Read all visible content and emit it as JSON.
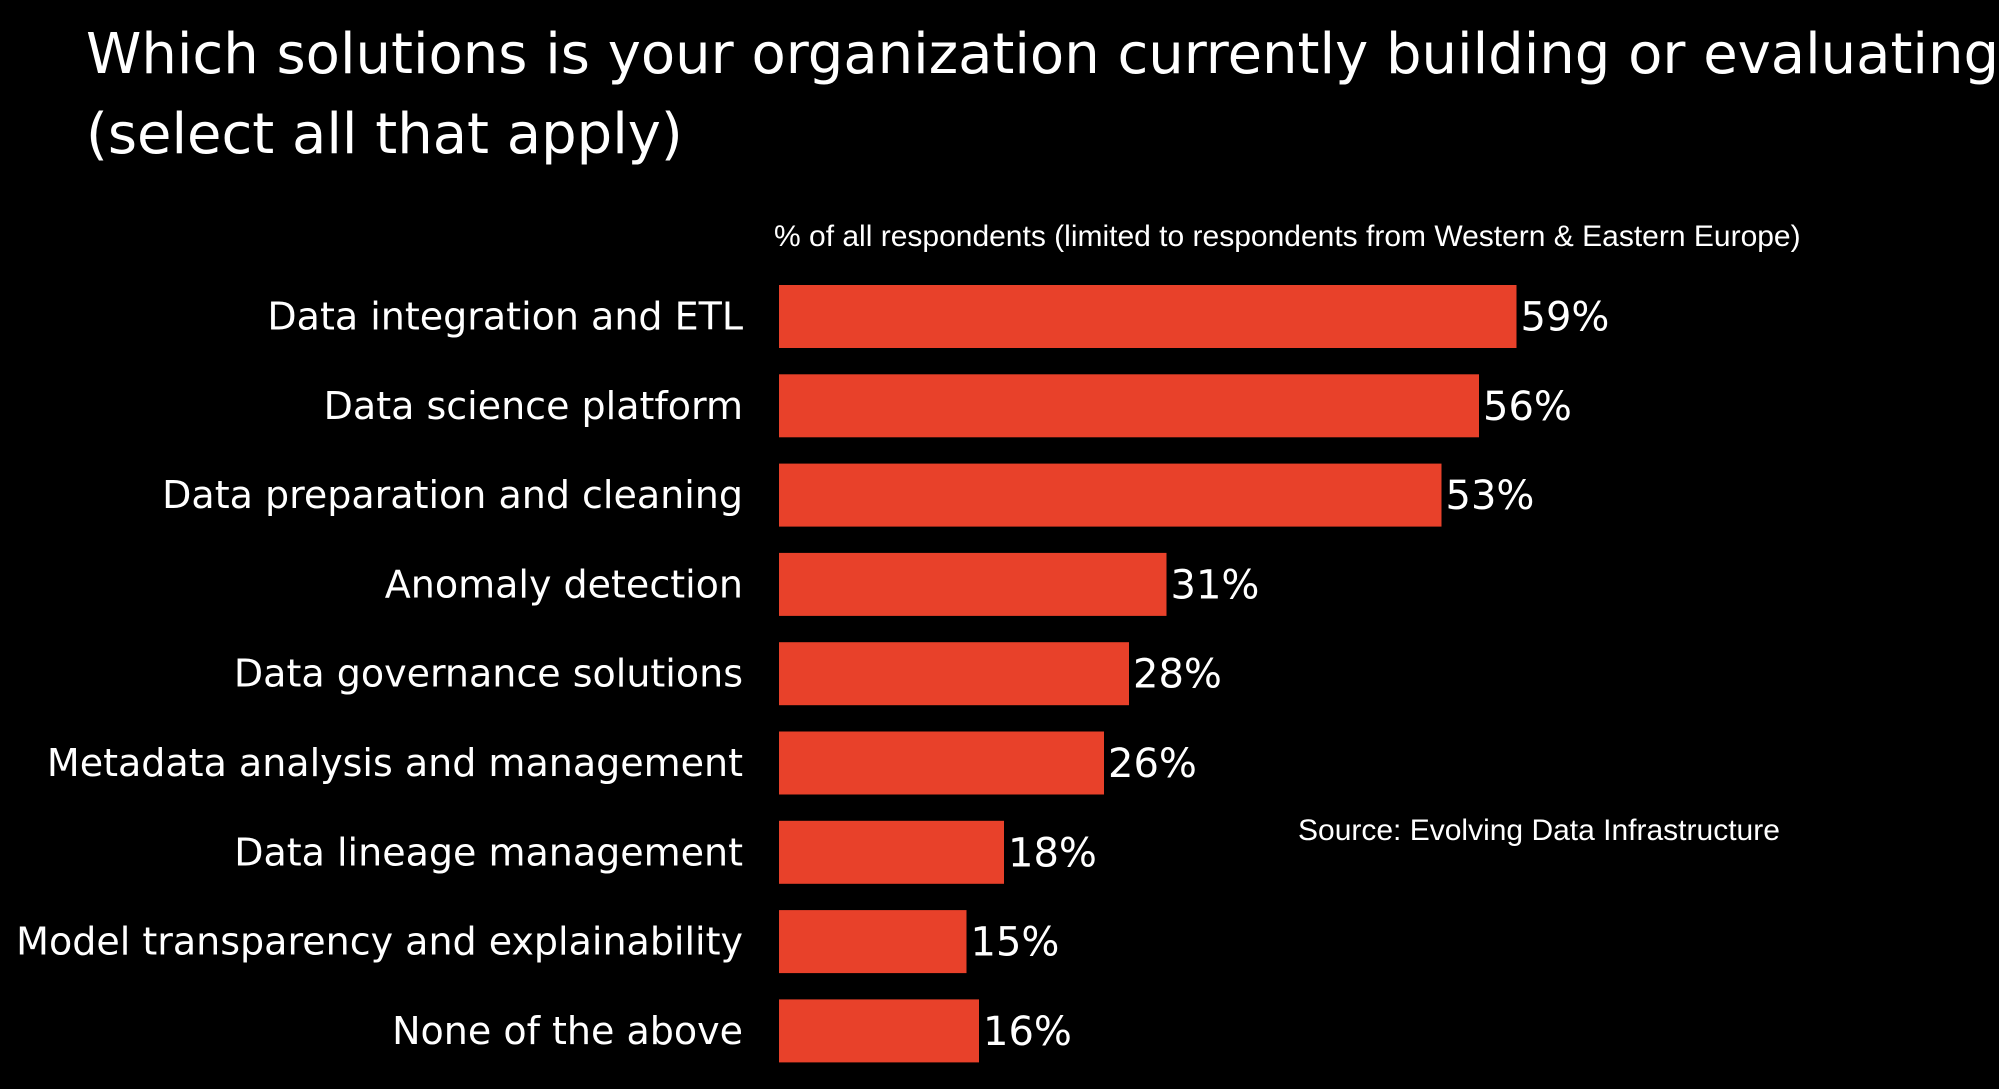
{
  "chart_data": {
    "type": "bar",
    "orientation": "horizontal",
    "title_lines": [
      "Which solutions is your organization currently building or evaluating?",
      "(select all that apply)"
    ],
    "subtitle": "% of all respondents (limited to respondents from Western & Eastern Europe)",
    "source": "Source: Evolving Data Infrastructure",
    "categories": [
      "Data integration and ETL",
      "Data science platform",
      "Data preparation and cleaning",
      "Anomaly detection",
      "Data governance solutions",
      "Metadata analysis and management",
      "Data lineage management",
      "Model transparency and explainability",
      "None of the above"
    ],
    "values": [
      59,
      56,
      53,
      31,
      28,
      26,
      18,
      15,
      16
    ],
    "value_labels": [
      "59%",
      "56%",
      "53%",
      "31%",
      "28%",
      "26%",
      "18%",
      "15%",
      "16%"
    ],
    "unit": "%",
    "grid": false,
    "legend": "none",
    "colors": {
      "background": "#000000",
      "bar": "#e8412a",
      "text": "#ffffff"
    }
  }
}
